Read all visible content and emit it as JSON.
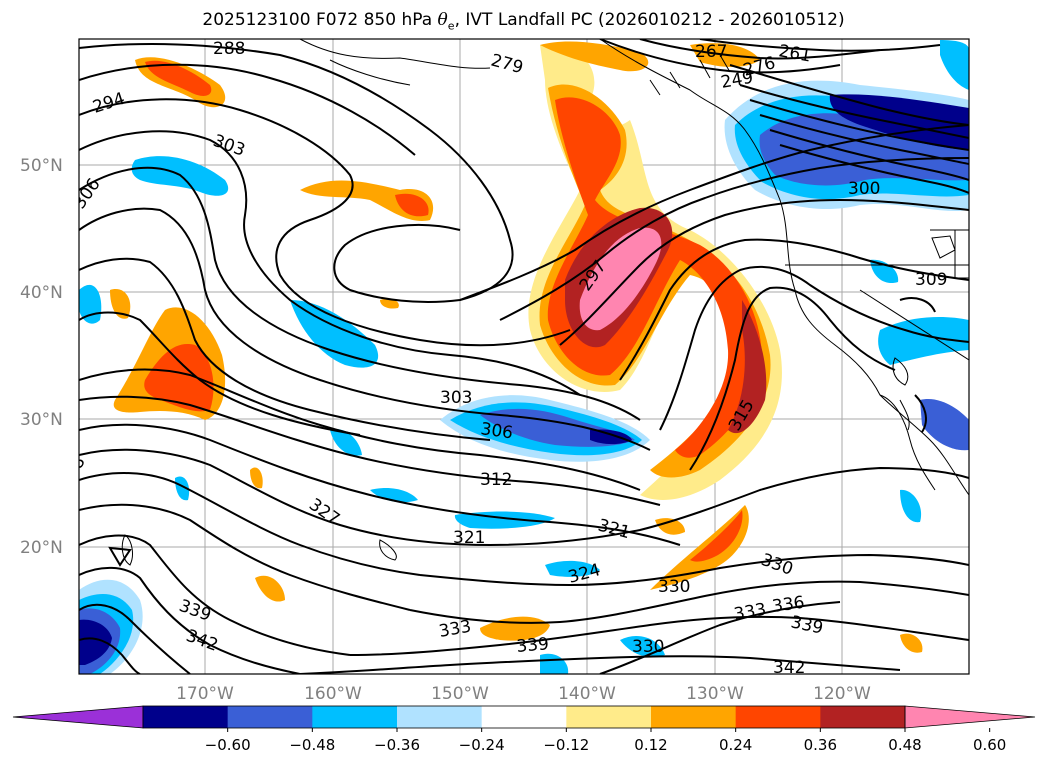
{
  "title": {
    "prefix": "2025123100 F072 850 hPa ",
    "symbol": "θ",
    "symbol_sub": "e",
    "suffix": ", IVT Landfall PC (2026010212 - 2026010512)"
  },
  "map": {
    "lat_labels": [
      "50°N",
      "40°N",
      "30°N",
      "20°N"
    ],
    "lon_labels": [
      "170°W",
      "160°W",
      "150°W",
      "140°W",
      "130°W",
      "120°W"
    ],
    "theta_contour_labels": [
      "288",
      "294",
      "303",
      "306",
      "279",
      "267",
      "261",
      "249",
      "276",
      "300",
      "297",
      "303",
      "306",
      "312",
      "315",
      "321",
      "321",
      "327",
      "324",
      "330",
      "330",
      "333",
      "336",
      "339",
      "339",
      "342",
      "333",
      "339",
      "342",
      "330",
      "309",
      "8"
    ]
  },
  "colorbar": {
    "tick_labels": [
      "−0.60",
      "−0.48",
      "−0.36",
      "−0.24",
      "−0.12",
      "0.12",
      "0.24",
      "0.36",
      "0.48",
      "0.60"
    ],
    "colors": [
      "#9b30d8",
      "#00008b",
      "#3a5fd6",
      "#00bfff",
      "#b0e2ff",
      "#ffffff",
      "#ffeb8a",
      "#ffa500",
      "#ff4500",
      "#b22222",
      "#ff85b0"
    ],
    "extend": "both"
  }
}
